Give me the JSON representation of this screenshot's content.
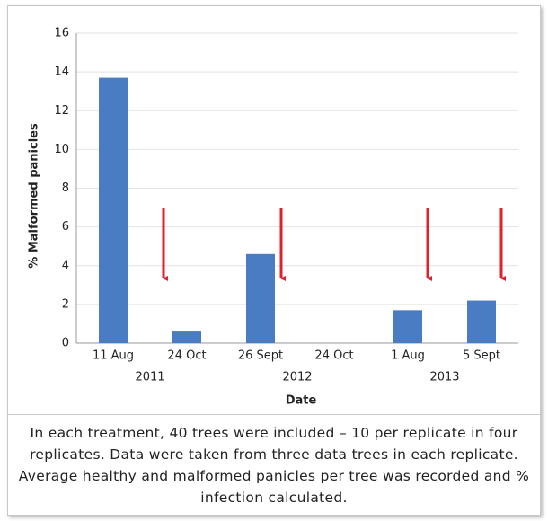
{
  "chart_data": {
    "type": "bar",
    "y_label": "% Malformed panicles",
    "x_label": "Date",
    "categories": [
      "11 Aug",
      "24 Oct",
      "26 Sept",
      "24 Oct",
      "1 Aug",
      "5 Sept"
    ],
    "groups": [
      "2011",
      "2012",
      "2013"
    ],
    "values": [
      13.7,
      0.6,
      4.6,
      0,
      1.7,
      2.2
    ],
    "color": "#4a7cc3",
    "ylim": [
      0,
      16
    ],
    "yticks": [
      0,
      2,
      4,
      6,
      8,
      10,
      12,
      14,
      16
    ],
    "grid": true
  },
  "caption": "In each treatment, 40 trees were included – 10 per replicate in four replicates. Data were taken from three data trees in each replicate. Average healthy and malformed panicles per tree was recorded and % infection calculated."
}
